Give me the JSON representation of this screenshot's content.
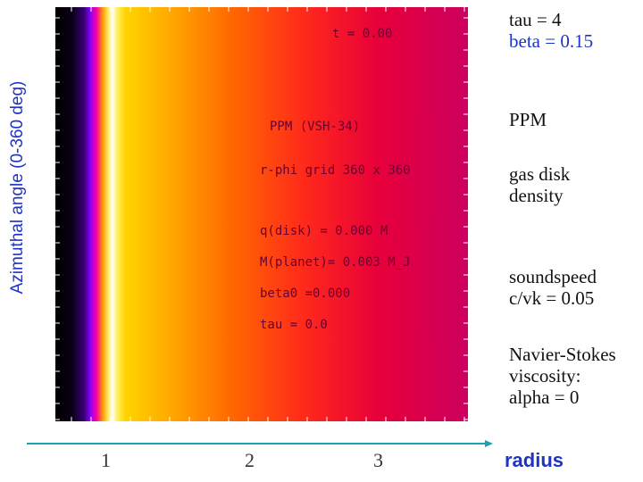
{
  "chart_data": {
    "type": "heatmap",
    "ylabel": "Azimuthal angle (0-360 deg)",
    "xlabel": "radius",
    "x_ticks": [
      "1",
      "2",
      "3"
    ],
    "colormap": [
      "#000000",
      "#3a0078",
      "#8c00ff",
      "#ffffff",
      "#ffd400",
      "#ff6a00",
      "#e8003a",
      "#cc0060"
    ],
    "density_profile_note": "Uniform in azimuth; color varies only with radius"
  },
  "annotations": {
    "time": "t =  0.00",
    "method": "PPM (VSH-34)",
    "grid": "r-phi grid 360 x 360",
    "qdisk": "q(disk) = 0.000 M",
    "mplanet": "M(planet)=  0.003 M_J",
    "beta0": "beta0 =0.000",
    "tau": "tau =  0.0"
  },
  "side": {
    "tau": "tau = 4",
    "beta": "beta = 0.15",
    "ppm": "PPM",
    "disk_line1": "gas disk",
    "disk_line2": "density",
    "sound_line1": "soundspeed",
    "sound_line2": "c/vk = 0.05",
    "ns_line1": "Navier-Stokes",
    "ns_line2": "viscosity:",
    "ns_line3": "alpha = 0"
  }
}
